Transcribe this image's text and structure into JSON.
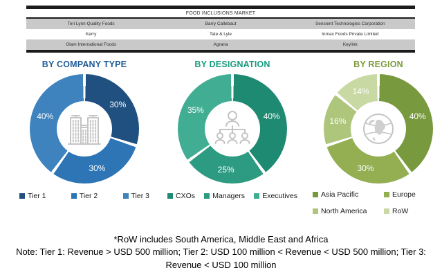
{
  "table": {
    "title": "FOOD INCLUSIONS MARKET",
    "rows": [
      [
        "Teri Lynn Quality Foods",
        "Barry Callebaut",
        "Sensient Technologies Corporation"
      ],
      [
        "Kerry",
        "Tate & Lyle",
        "Inmax Foods Private Limited"
      ],
      [
        "Olam International Foods",
        "Agrana",
        "Keylink"
      ]
    ]
  },
  "chart_data": [
    {
      "type": "pie",
      "title": "BY COMPANY TYPE",
      "title_color": "#1F5C99",
      "labels": [
        "Tier 1",
        "Tier 2",
        "Tier 3"
      ],
      "values": [
        30,
        30,
        40
      ],
      "unit": "%",
      "colors": [
        "#1F5080",
        "#2E75B6",
        "#3E82BE"
      ],
      "center_icon": "buildings-icon",
      "legend_position": "bottom-row"
    },
    {
      "type": "pie",
      "title": "BY DESIGNATION",
      "title_color": "#189B7E",
      "labels": [
        "CXOs",
        "Managers",
        "Executives"
      ],
      "values": [
        40,
        25,
        35
      ],
      "unit": "%",
      "colors": [
        "#1F8A72",
        "#2D9B82",
        "#41AD92"
      ],
      "center_icon": "org-chart-icon",
      "legend_position": "bottom-row"
    },
    {
      "type": "pie",
      "title": "BY REGION",
      "title_color": "#7A9A3C",
      "labels": [
        "Asia Pacific",
        "Europe",
        "North America",
        "RoW"
      ],
      "values": [
        40,
        30,
        16,
        14
      ],
      "unit": "%",
      "colors": [
        "#78993E",
        "#93AF52",
        "#AEC57C",
        "#C9D9A3"
      ],
      "center_icon": "globe-icon",
      "legend_position": "bottom-grid"
    }
  ],
  "notes": {
    "footnote": "*RoW includes South America, Middle East and Africa",
    "note_line1": "Note: Tier 1: Revenue > USD 500 million; Tier 2: USD 100 million < Revenue < USD 500 million; Tier 3:",
    "note_line2": "Revenue < USD 100 million"
  }
}
